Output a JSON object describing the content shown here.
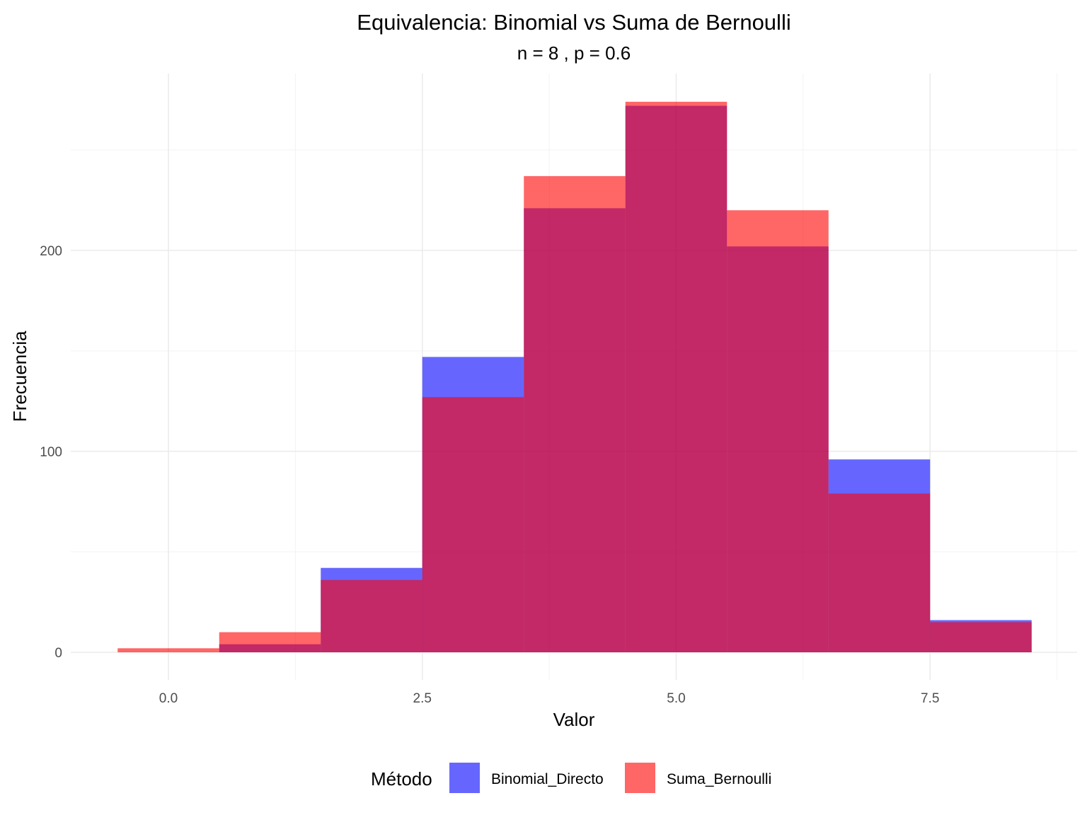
{
  "chart_data": {
    "type": "bar",
    "subtype": "overlaid histogram",
    "title": "Equivalencia: Binomial vs Suma de Bernoulli",
    "subtitle": "n = 8 , p = 0.6",
    "xlabel": "Valor",
    "ylabel": "Frecuencia",
    "xlim": [
      -0.5,
      8.5
    ],
    "ylim": [
      0,
      275
    ],
    "x_ticks": [
      0,
      2.5,
      5,
      7.5
    ],
    "x_tick_labels": [
      "0.0",
      "2.5",
      "5.0",
      "7.5"
    ],
    "y_ticks": [
      0,
      100,
      200
    ],
    "y_tick_labels": [
      "0",
      "100",
      "200"
    ],
    "grid": true,
    "bin_width": 1,
    "categories": [
      0,
      1,
      2,
      3,
      4,
      5,
      6,
      7,
      8
    ],
    "series": [
      {
        "name": "Binomial_Directo",
        "color": "#0000ff",
        "opacity": 0.6,
        "values": [
          0,
          4,
          42,
          147,
          221,
          272,
          202,
          96,
          16
        ]
      },
      {
        "name": "Suma_Bernoulli",
        "color": "#ff0000",
        "opacity": 0.6,
        "values": [
          2,
          10,
          36,
          127,
          237,
          274,
          220,
          79,
          15
        ]
      }
    ],
    "legend": {
      "title": "Método",
      "position": "bottom"
    }
  }
}
